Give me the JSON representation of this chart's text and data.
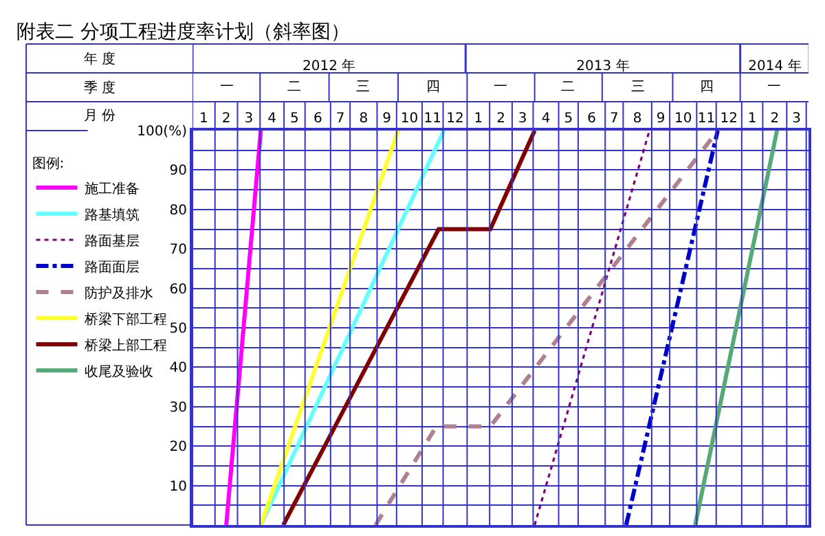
{
  "chart_data": {
    "type": "line",
    "title": "附表二 分项工程进度率计划（斜率图）",
    "legend_title": "图例:",
    "annotations": [
      "年 度",
      "季 度",
      "月 份",
      "一",
      "二",
      "三",
      "四",
      "一",
      "二",
      "三",
      "四",
      "一"
    ],
    "xlim": [
      "2012-01-01",
      "2014-04-01"
    ],
    "xticks": [
      {
        "value": "2012-01-16",
        "label": "1"
      },
      {
        "value": "2012-02-15",
        "label": "2"
      },
      {
        "value": "2012-03-16",
        "label": "3"
      },
      {
        "value": "2012-04-16",
        "label": "4"
      },
      {
        "value": "2012-05-16",
        "label": "5"
      },
      {
        "value": "2012-06-16",
        "label": "6"
      },
      {
        "value": "2012-07-16",
        "label": "7"
      },
      {
        "value": "2012-08-16",
        "label": "8"
      },
      {
        "value": "2012-09-16",
        "label": "9"
      },
      {
        "value": "2012-10-16",
        "label": "10"
      },
      {
        "value": "2012-11-16",
        "label": "11"
      },
      {
        "value": "2012-12-16",
        "label": "12"
      },
      {
        "value": "2013-01-16",
        "label": "1"
      },
      {
        "value": "2013-02-15",
        "label": "2"
      },
      {
        "value": "2013-03-16",
        "label": "3"
      },
      {
        "value": "2013-04-16",
        "label": "4"
      },
      {
        "value": "2013-05-16",
        "label": "5"
      },
      {
        "value": "2013-06-16",
        "label": "6"
      },
      {
        "value": "2013-07-16",
        "label": "7"
      },
      {
        "value": "2013-08-16",
        "label": "8"
      },
      {
        "value": "2013-09-16",
        "label": "9"
      },
      {
        "value": "2013-10-16",
        "label": "10"
      },
      {
        "value": "2013-11-16",
        "label": "11"
      },
      {
        "value": "2013-12-16",
        "label": "12"
      },
      {
        "value": "2014-01-16",
        "label": "1"
      },
      {
        "value": "2014-02-15",
        "label": "2"
      },
      {
        "value": "2014-03-16",
        "label": "3"
      }
    ],
    "x2lim": [
      "2012-01-01",
      "2014-04-01"
    ],
    "x2ticks": [
      {
        "value": "2012-07-01",
        "label": "2012 年"
      },
      {
        "value": "2013-07-01",
        "label": "2013 年"
      },
      {
        "value": "2014-02-15",
        "label": "2014 年"
      }
    ],
    "ylim": [
      0,
      100
    ],
    "yticks": [
      {
        "value": 5,
        "label": null
      },
      10,
      {
        "value": 15,
        "label": null
      },
      20,
      {
        "value": 25,
        "label": null
      },
      30,
      {
        "value": 35,
        "label": null
      },
      40,
      {
        "value": 45,
        "label": null
      },
      50,
      {
        "value": 55,
        "label": null
      },
      60,
      {
        "value": 65,
        "label": null
      },
      70,
      {
        "value": 75,
        "label": null
      },
      80,
      {
        "value": 85,
        "label": null
      },
      90,
      {
        "value": 95,
        "label": null
      },
      {
        "value": 100,
        "label": "100(%)"
      }
    ],
    "grid": true,
    "legend": "left",
    "marker": "none",
    "series": [
      {
        "name": "施工准备",
        "color": "#ff00ff",
        "line_style": "solid",
        "x": [
          "2012-02-15",
          "2012-04-01"
        ],
        "values": [
          0,
          100
        ]
      },
      {
        "name": "路基填筑",
        "color": "#66ffff",
        "line_style": "solid",
        "x": [
          "2012-04-01",
          "2012-12-01"
        ],
        "values": [
          0,
          100
        ]
      },
      {
        "name": "路面基层",
        "color": "#800080",
        "line_style": "dotted",
        "x": [
          "2013-04-01",
          "2013-09-01"
        ],
        "values": [
          0,
          100
        ]
      },
      {
        "name": "路面面层",
        "color": "#0000cc",
        "line_style": "dashdot",
        "x": [
          "2013-08-01",
          "2013-12-01"
        ],
        "values": [
          0,
          100
        ]
      },
      {
        "name": "防护及排水",
        "color": "#b08090",
        "line_style": "dashed",
        "x": [
          "2012-09-01",
          "2012-11-21",
          "2013-02-01",
          "2013-12-01"
        ],
        "values": [
          0,
          25,
          25,
          100
        ]
      },
      {
        "name": "桥梁下部工程",
        "color": "#ffff33",
        "line_style": "solid",
        "x": [
          "2012-04-01",
          "2012-10-01"
        ],
        "values": [
          0,
          100
        ]
      },
      {
        "name": "桥梁上部工程",
        "color": "#800000",
        "line_style": "solid",
        "x": [
          "2012-05-01",
          "2012-11-24",
          "2013-02-01",
          "2013-04-01"
        ],
        "values": [
          0,
          75,
          75,
          100
        ]
      },
      {
        "name": "收尾及验收",
        "color": "#55aa77",
        "line_style": "solid",
        "x": [
          "2013-11-01",
          "2014-02-18"
        ],
        "values": [
          0,
          100
        ]
      }
    ]
  }
}
